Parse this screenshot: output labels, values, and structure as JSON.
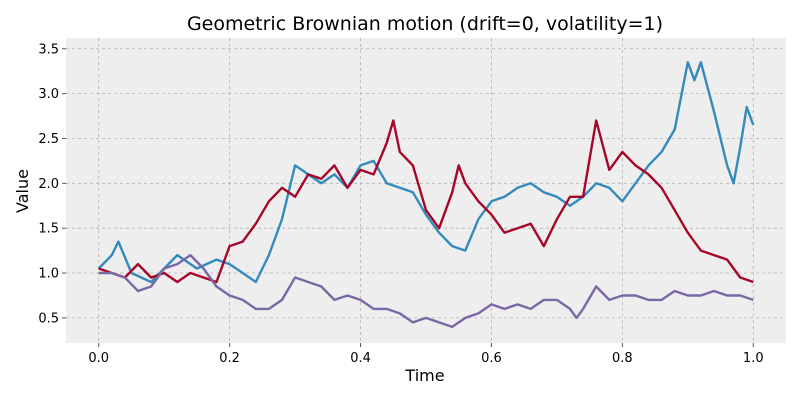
{
  "chart_data": {
    "type": "line",
    "title": "Geometric Brownian motion (drift=0, volatility=1)",
    "xlabel": "Time",
    "ylabel": "Value",
    "xlim": [
      -0.05,
      1.05
    ],
    "ylim": [
      0.22,
      3.62
    ],
    "x_ticks": [
      0.0,
      0.2,
      0.4,
      0.6,
      0.8,
      1.0
    ],
    "x_tick_labels": [
      "0.0",
      "0.2",
      "0.4",
      "0.6",
      "0.8",
      "1.0"
    ],
    "y_ticks": [
      0.5,
      1.0,
      1.5,
      2.0,
      2.5,
      3.0,
      3.5
    ],
    "y_tick_labels": [
      "0.5",
      "1.0",
      "1.5",
      "2.0",
      "2.5",
      "3.0",
      "3.5"
    ],
    "grid": true,
    "legend": "none",
    "background": "#eeeeee",
    "series": [
      {
        "color": "#348abd",
        "x": [
          0.0,
          0.02,
          0.03,
          0.05,
          0.08,
          0.1,
          0.12,
          0.15,
          0.18,
          0.2,
          0.22,
          0.24,
          0.26,
          0.28,
          0.3,
          0.32,
          0.34,
          0.36,
          0.38,
          0.4,
          0.42,
          0.44,
          0.46,
          0.48,
          0.5,
          0.52,
          0.54,
          0.56,
          0.58,
          0.6,
          0.62,
          0.64,
          0.66,
          0.68,
          0.7,
          0.72,
          0.74,
          0.76,
          0.78,
          0.8,
          0.82,
          0.84,
          0.86,
          0.88,
          0.9,
          0.91,
          0.92,
          0.94,
          0.96,
          0.97,
          0.98,
          0.99,
          1.0
        ],
        "y": [
          1.05,
          1.2,
          1.35,
          1.0,
          0.9,
          1.05,
          1.2,
          1.05,
          1.15,
          1.1,
          1.0,
          0.9,
          1.2,
          1.6,
          2.2,
          2.1,
          2.0,
          2.1,
          1.95,
          2.2,
          2.25,
          2.0,
          1.95,
          1.9,
          1.65,
          1.45,
          1.3,
          1.25,
          1.6,
          1.8,
          1.85,
          1.95,
          2.0,
          1.9,
          1.85,
          1.75,
          1.85,
          2.0,
          1.95,
          1.8,
          2.0,
          2.2,
          2.35,
          2.6,
          3.35,
          3.15,
          3.35,
          2.8,
          2.2,
          2.0,
          2.4,
          2.85,
          2.65
        ]
      },
      {
        "color": "#a60628",
        "x": [
          0.0,
          0.02,
          0.04,
          0.06,
          0.08,
          0.1,
          0.12,
          0.14,
          0.16,
          0.18,
          0.2,
          0.22,
          0.24,
          0.26,
          0.28,
          0.3,
          0.32,
          0.34,
          0.36,
          0.38,
          0.4,
          0.42,
          0.44,
          0.45,
          0.46,
          0.48,
          0.5,
          0.52,
          0.54,
          0.55,
          0.56,
          0.58,
          0.6,
          0.62,
          0.64,
          0.66,
          0.68,
          0.7,
          0.72,
          0.74,
          0.76,
          0.78,
          0.8,
          0.82,
          0.84,
          0.86,
          0.88,
          0.9,
          0.92,
          0.94,
          0.96,
          0.98,
          1.0
        ],
        "y": [
          1.05,
          1.0,
          0.95,
          1.1,
          0.95,
          1.0,
          0.9,
          1.0,
          0.95,
          0.9,
          1.3,
          1.35,
          1.55,
          1.8,
          1.95,
          1.85,
          2.1,
          2.05,
          2.2,
          1.95,
          2.15,
          2.1,
          2.45,
          2.7,
          2.35,
          2.2,
          1.7,
          1.5,
          1.9,
          2.2,
          2.0,
          1.8,
          1.65,
          1.45,
          1.5,
          1.55,
          1.3,
          1.6,
          1.85,
          1.85,
          2.7,
          2.15,
          2.35,
          2.2,
          2.1,
          1.95,
          1.7,
          1.45,
          1.25,
          1.2,
          1.15,
          0.95,
          0.9
        ]
      },
      {
        "color": "#7a68a6",
        "x": [
          0.0,
          0.02,
          0.04,
          0.06,
          0.08,
          0.1,
          0.12,
          0.14,
          0.16,
          0.18,
          0.2,
          0.22,
          0.24,
          0.26,
          0.28,
          0.3,
          0.32,
          0.34,
          0.36,
          0.38,
          0.4,
          0.42,
          0.44,
          0.46,
          0.48,
          0.5,
          0.52,
          0.54,
          0.56,
          0.58,
          0.6,
          0.62,
          0.64,
          0.66,
          0.68,
          0.7,
          0.72,
          0.73,
          0.74,
          0.76,
          0.78,
          0.8,
          0.82,
          0.84,
          0.86,
          0.88,
          0.9,
          0.92,
          0.94,
          0.96,
          0.98,
          1.0
        ],
        "y": [
          1.0,
          1.0,
          0.95,
          0.8,
          0.85,
          1.05,
          1.1,
          1.2,
          1.05,
          0.85,
          0.75,
          0.7,
          0.6,
          0.6,
          0.7,
          0.95,
          0.9,
          0.85,
          0.7,
          0.75,
          0.7,
          0.6,
          0.6,
          0.55,
          0.45,
          0.5,
          0.45,
          0.4,
          0.5,
          0.55,
          0.65,
          0.6,
          0.65,
          0.6,
          0.7,
          0.7,
          0.6,
          0.5,
          0.6,
          0.85,
          0.7,
          0.75,
          0.75,
          0.7,
          0.7,
          0.8,
          0.75,
          0.75,
          0.8,
          0.75,
          0.75,
          0.7
        ]
      }
    ]
  }
}
